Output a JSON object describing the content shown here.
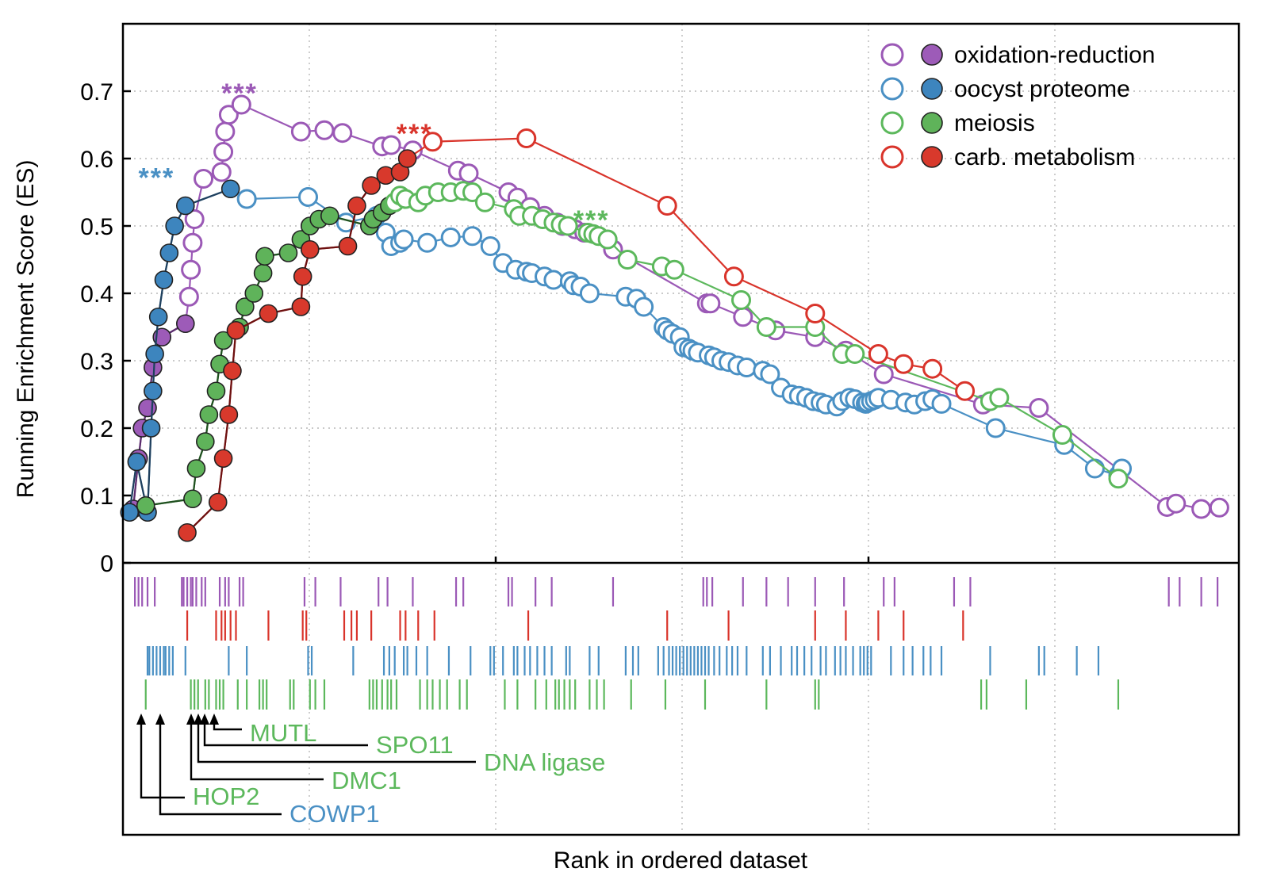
{
  "colors": {
    "oxidation": "#9B59B6",
    "oocyst": "#4A90C4",
    "meiosis": "#5CB85C",
    "carb": "#D9342B",
    "oxidation_fill": "#9D5BB8",
    "oocyst_fill": "#3D85BE",
    "meiosis_fill": "#5FB35A",
    "carb_fill": "#D8392C"
  },
  "chart_data": {
    "type": "scatter",
    "ylabel": "Running Enrichment Score (ES)",
    "xlabel": "Rank in ordered dataset",
    "ylim": [
      0,
      0.8
    ],
    "xlim": [
      0,
      60
    ],
    "yticks": [
      "0",
      "0.1",
      "0.2",
      "0.3",
      "0.4",
      "0.5",
      "0.6",
      "0.7"
    ],
    "grid": "dotted",
    "legend_position": "top-right",
    "legend": [
      {
        "key": "oxidation",
        "label": "oxidation-reduction"
      },
      {
        "key": "oocyst",
        "label": "oocyst proteome"
      },
      {
        "key": "meiosis",
        "label": "meiosis"
      },
      {
        "key": "carb",
        "label": "carb. metabolism"
      }
    ],
    "significance": [
      {
        "key": "oxidation",
        "text": "***",
        "x": 6.2,
        "y": 0.7
      },
      {
        "key": "oocyst",
        "text": "***",
        "x": 1.6,
        "y": 0.575
      },
      {
        "key": "carb",
        "text": "***",
        "x": 15.9,
        "y": 0.64
      },
      {
        "key": "meiosis",
        "text": "***",
        "x": 25.7,
        "y": 0.512
      }
    ],
    "series": [
      {
        "key": "oxidation",
        "name": "oxidation-reduction",
        "leading_edge": 6,
        "x": [
          0.3,
          0.6,
          0.8,
          1.1,
          1.4,
          1.9,
          3.2,
          3.4,
          3.5,
          3.6,
          3.7,
          4.2,
          5.2,
          5.3,
          5.4,
          5.6,
          6.3,
          9.6,
          10.9,
          11.9,
          14.1,
          14.6,
          15.8,
          18.3,
          18.9,
          21.1,
          21.6,
          22.3,
          23.1,
          23.8,
          24.1,
          24.8,
          25.3,
          26.9,
          32.1,
          32.3,
          34.1,
          35.9,
          38.1,
          39.8,
          41.9,
          47.4,
          50.5,
          57.6,
          58.1,
          59.5,
          60.5
        ],
        "y": [
          0.08,
          0.155,
          0.2,
          0.23,
          0.29,
          0.335,
          0.355,
          0.395,
          0.435,
          0.475,
          0.51,
          0.57,
          0.58,
          0.61,
          0.64,
          0.665,
          0.68,
          0.64,
          0.642,
          0.638,
          0.618,
          0.62,
          0.612,
          0.582,
          0.578,
          0.55,
          0.542,
          0.528,
          0.515,
          0.505,
          0.5,
          0.495,
          0.49,
          0.465,
          0.385,
          0.385,
          0.365,
          0.345,
          0.335,
          0.315,
          0.28,
          0.235,
          0.23,
          0.083,
          0.088,
          0.08,
          0.082
        ]
      },
      {
        "key": "oocyst",
        "name": "oocyst proteome",
        "leading_edge": 11,
        "x": [
          0.1,
          0.5,
          1.1,
          1.3,
          1.4,
          1.5,
          1.7,
          2.0,
          2.3,
          2.6,
          3.2,
          5.7,
          6.6,
          10.0,
          12.1,
          13.8,
          14.3,
          14.6,
          15.1,
          15.3,
          16.6,
          17.9,
          19.1,
          20.1,
          20.8,
          21.5,
          22.1,
          22.4,
          23.1,
          23.6,
          24.5,
          24.7,
          25.1,
          25.6,
          27.6,
          28.2,
          28.6,
          29.7,
          29.9,
          30.2,
          30.6,
          30.8,
          31.1,
          31.3,
          31.6,
          32.2,
          32.5,
          32.9,
          33.3,
          33.8,
          34.3,
          35.2,
          35.6,
          36.2,
          36.8,
          37.2,
          37.6,
          38.0,
          38.4,
          38.7,
          39.3,
          39.6,
          40.0,
          40.3,
          40.7,
          40.9,
          41.0,
          41.2,
          41.4,
          41.6,
          42.3,
          43.1,
          43.6,
          44.2,
          44.6,
          45.1,
          48.1,
          51.9,
          53.6,
          54.9,
          55.1
        ],
        "y": [
          0.075,
          0.15,
          0.075,
          0.2,
          0.255,
          0.31,
          0.365,
          0.42,
          0.46,
          0.5,
          0.53,
          0.555,
          0.54,
          0.543,
          0.505,
          0.515,
          0.49,
          0.47,
          0.475,
          0.48,
          0.475,
          0.483,
          0.485,
          0.47,
          0.445,
          0.435,
          0.432,
          0.43,
          0.425,
          0.42,
          0.418,
          0.412,
          0.41,
          0.4,
          0.395,
          0.392,
          0.38,
          0.35,
          0.345,
          0.34,
          0.335,
          0.32,
          0.318,
          0.315,
          0.312,
          0.308,
          0.305,
          0.3,
          0.298,
          0.293,
          0.29,
          0.285,
          0.28,
          0.26,
          0.25,
          0.248,
          0.245,
          0.24,
          0.238,
          0.235,
          0.232,
          0.24,
          0.245,
          0.243,
          0.238,
          0.236,
          0.238,
          0.24,
          0.242,
          0.245,
          0.242,
          0.238,
          0.235,
          0.24,
          0.243,
          0.236,
          0.2,
          0.175,
          0.14,
          0.13,
          0.14
        ]
      },
      {
        "key": "meiosis",
        "name": "meiosis",
        "leading_edge": 21,
        "x": [
          1.0,
          3.6,
          3.8,
          4.3,
          4.5,
          4.9,
          5.1,
          5.3,
          6.2,
          6.5,
          7.0,
          7.5,
          7.6,
          8.9,
          9.6,
          10.1,
          10.6,
          11.2,
          13.4,
          13.6,
          14.1,
          14.5,
          14.8,
          15.1,
          15.4,
          16.1,
          16.5,
          17.2,
          17.9,
          18.6,
          19.1,
          19.8,
          21.4,
          21.7,
          22.4,
          23.0,
          23.6,
          24.0,
          24.4,
          25.5,
          25.8,
          26.1,
          26.6,
          27.7,
          29.6,
          30.3,
          34.0,
          35.4,
          38.1,
          39.6,
          40.3,
          47.8,
          48.3,
          51.8,
          54.9
        ],
        "y": [
          0.085,
          0.095,
          0.14,
          0.18,
          0.22,
          0.255,
          0.295,
          0.33,
          0.35,
          0.38,
          0.4,
          0.43,
          0.455,
          0.46,
          0.48,
          0.5,
          0.51,
          0.515,
          0.5,
          0.51,
          0.52,
          0.53,
          0.535,
          0.545,
          0.54,
          0.535,
          0.545,
          0.55,
          0.55,
          0.552,
          0.55,
          0.535,
          0.525,
          0.515,
          0.515,
          0.51,
          0.505,
          0.502,
          0.5,
          0.49,
          0.488,
          0.485,
          0.48,
          0.45,
          0.44,
          0.435,
          0.39,
          0.35,
          0.35,
          0.31,
          0.31,
          0.24,
          0.245,
          0.19,
          0.125
        ]
      },
      {
        "key": "carb",
        "name": "carb. metabolism",
        "leading_edge": 15,
        "x": [
          3.3,
          5.0,
          5.3,
          5.6,
          5.8,
          6.0,
          7.8,
          9.6,
          9.7,
          10.1,
          12.2,
          12.7,
          13.5,
          14.3,
          15.1,
          15.5,
          16.9,
          22.1,
          29.9,
          33.6,
          38.1,
          41.6,
          43.0,
          44.6,
          46.4
        ],
        "y": [
          0.045,
          0.09,
          0.155,
          0.22,
          0.285,
          0.345,
          0.37,
          0.38,
          0.425,
          0.465,
          0.47,
          0.53,
          0.56,
          0.575,
          0.58,
          0.6,
          0.625,
          0.63,
          0.53,
          0.425,
          0.37,
          0.31,
          0.295,
          0.288,
          0.255
        ]
      }
    ],
    "rug": [
      {
        "key": "oxidation",
        "x": [
          0.4,
          0.6,
          0.8,
          1.1,
          1.5,
          3.0,
          3.1,
          3.3,
          3.5,
          3.6,
          3.8,
          4.1,
          4.3,
          5.1,
          5.4,
          5.6,
          6.2,
          6.4,
          9.8,
          10.4,
          11.8,
          13.9,
          14.4,
          15.8,
          18.2,
          18.6,
          21.1,
          21.3,
          22.6,
          23.5,
          26.9,
          31.9,
          32.1,
          32.4,
          34.1,
          35.4,
          36.6,
          38.1,
          39.7,
          41.9,
          42.5,
          45.8,
          46.7,
          57.7,
          58.3,
          59.5,
          60.4
        ]
      },
      {
        "key": "carb",
        "x": [
          3.3,
          4.9,
          5.2,
          5.4,
          5.7,
          6.0,
          7.8,
          9.7,
          9.9,
          12.0,
          12.4,
          12.7,
          13.5,
          15.1,
          15.4,
          16.1,
          17.0,
          22.2,
          29.9,
          33.3,
          38.1,
          39.8,
          41.6,
          43.0,
          46.3
        ]
      },
      {
        "key": "oocyst",
        "x": [
          1.1,
          1.2,
          1.4,
          1.6,
          1.8,
          2.0,
          2.1,
          2.3,
          2.5,
          3.2,
          5.6,
          6.6,
          10.0,
          10.2,
          12.5,
          14.2,
          14.5,
          14.8,
          15.3,
          15.5,
          16.0,
          16.6,
          17.8,
          19.0,
          20.1,
          20.3,
          20.8,
          21.4,
          21.6,
          22.0,
          22.3,
          22.7,
          23.1,
          23.5,
          24.3,
          24.5,
          25.6,
          26.1,
          27.6,
          28.0,
          28.3,
          29.4,
          29.7,
          30.0,
          30.2,
          30.4,
          30.6,
          30.8,
          31.0,
          31.2,
          31.4,
          31.6,
          31.8,
          32.0,
          32.2,
          32.5,
          32.8,
          33.2,
          33.5,
          33.8,
          34.3,
          35.2,
          35.6,
          36.2,
          36.8,
          37.1,
          37.5,
          37.9,
          38.4,
          38.7,
          39.2,
          39.5,
          39.8,
          40.2,
          40.6,
          40.8,
          41.0,
          41.2,
          42.3,
          43.0,
          43.5,
          44.1,
          44.5,
          45.1,
          47.8,
          50.5,
          50.8,
          52.6,
          53.8
        ]
      },
      {
        "key": "meiosis",
        "x": [
          1.0,
          3.5,
          3.7,
          3.9,
          4.3,
          4.5,
          4.9,
          5.1,
          5.3,
          6.1,
          6.6,
          7.3,
          7.5,
          7.7,
          9.0,
          9.2,
          10.1,
          10.4,
          10.9,
          13.4,
          13.6,
          13.8,
          14.1,
          14.4,
          14.6,
          14.9,
          16.2,
          16.6,
          16.9,
          17.3,
          17.7,
          18.4,
          18.8,
          20.9,
          21.6,
          22.6,
          23.2,
          23.7,
          23.9,
          24.2,
          24.5,
          24.8,
          25.6,
          26.0,
          26.4,
          27.9,
          29.8,
          32.0,
          35.4,
          38.1,
          38.3,
          47.3,
          47.6,
          49.8,
          54.9
        ]
      }
    ],
    "gene_labels": [
      {
        "key": "meiosis",
        "text": "MUTL"
      },
      {
        "key": "meiosis",
        "text": "SPO11"
      },
      {
        "key": "meiosis",
        "text": "DNA ligase"
      },
      {
        "key": "meiosis",
        "text": "DMC1"
      },
      {
        "key": "meiosis",
        "text": "HOP2"
      },
      {
        "key": "oocyst",
        "text": "COWP1"
      }
    ]
  }
}
